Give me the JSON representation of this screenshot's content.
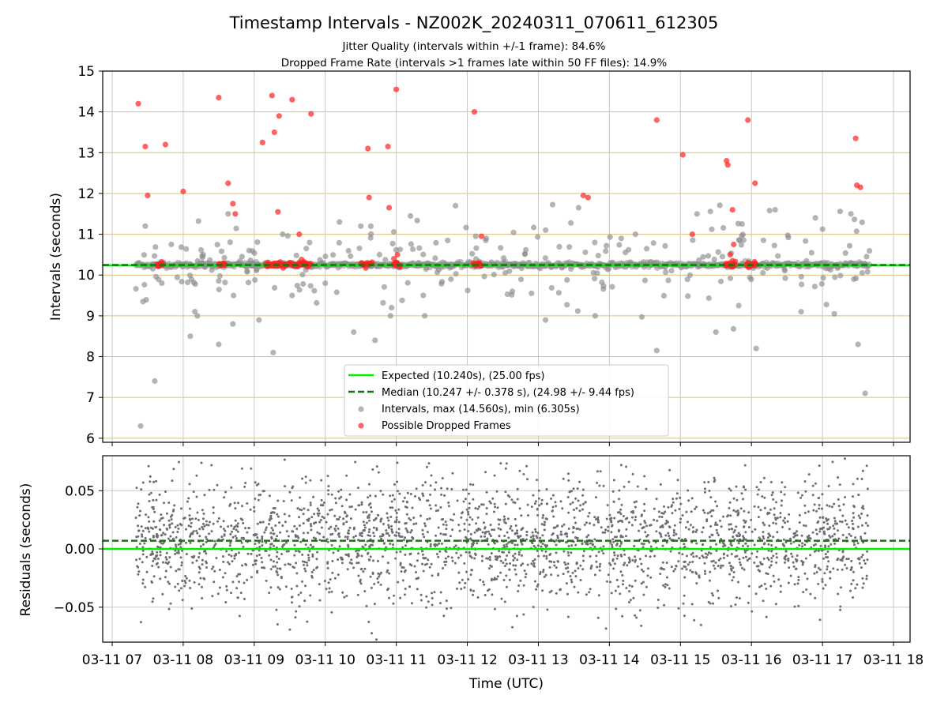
{
  "title": "Timestamp Intervals - NZ002K_20240311_070611_612305",
  "subtitle_1": "Jitter Quality (intervals within +/-1 frame): 84.6%",
  "subtitle_2": "Dropped Frame Rate (intervals >1 frames late within 50 FF files): 14.9%",
  "colors": {
    "expected": "#00ee00",
    "median": "#0a7a0a",
    "intervals": "#8c8c8c",
    "dropped": "#ff2020",
    "residuals": "#6e6e6e",
    "hgrid_top": "#d8bf7a",
    "vgrid": "#c8c8c8"
  },
  "chart_data": [
    {
      "type": "scatter",
      "xlabel": "",
      "ylabel": "Intervals (seconds)",
      "xlim": [
        "2024-03-11 06:52",
        "2024-03-11 18:14"
      ],
      "ylim": [
        5.9,
        15
      ],
      "yticks": [
        6,
        7,
        8,
        9,
        10,
        11,
        12,
        13,
        14,
        15
      ],
      "grid": true,
      "legend_position": "lower-center",
      "expected_value": 10.24,
      "median_value": 10.247,
      "legend": {
        "expected": "Expected (10.240s), (25.00 fps)",
        "median": "Median (10.247 +/- 0.378 s), (24.98 +/- 9.44 fps)",
        "intervals": "Intervals, max (14.560s), min (6.305s)",
        "dropped": "Possible Dropped Frames"
      },
      "series": [
        {
          "name": "Intervals, max (14.560s), min (6.305s)",
          "x": [
            "2024-03-11 07:24",
            "2024-03-11 07:26",
            "2024-03-11 07:28",
            "2024-03-11 07:36",
            "2024-03-11 07:42",
            "2024-03-11 07:50",
            "2024-03-11 08:06",
            "2024-03-11 08:12",
            "2024-03-11 08:18",
            "2024-03-11 08:30",
            "2024-03-11 08:38",
            "2024-03-11 08:42",
            "2024-03-11 08:54",
            "2024-03-11 09:04",
            "2024-03-11 09:16",
            "2024-03-11 09:24",
            "2024-03-11 09:32",
            "2024-03-11 09:44",
            "2024-03-11 10:00",
            "2024-03-11 10:12",
            "2024-03-11 10:24",
            "2024-03-11 10:30",
            "2024-03-11 10:42",
            "2024-03-11 10:56",
            "2024-03-11 11:12",
            "2024-03-11 11:24",
            "2024-03-11 11:50",
            "2024-03-11 12:16",
            "2024-03-11 12:38",
            "2024-03-11 13:06",
            "2024-03-11 13:34",
            "2024-03-11 13:48",
            "2024-03-11 14:10",
            "2024-03-11 14:22",
            "2024-03-11 14:40",
            "2024-03-11 15:14",
            "2024-03-11 15:30",
            "2024-03-11 15:50",
            "2024-03-11 16:04",
            "2024-03-11 16:20",
            "2024-03-11 16:42",
            "2024-03-11 16:54",
            "2024-03-11 17:10",
            "2024-03-11 17:24",
            "2024-03-11 17:30",
            "2024-03-11 17:36"
          ],
          "y": [
            6.3,
            9.35,
            11.2,
            7.4,
            9.8,
            10.75,
            8.5,
            9.0,
            10.2,
            8.3,
            11.5,
            8.8,
            10.1,
            8.9,
            8.1,
            11.0,
            9.5,
            10.65,
            9.8,
            11.3,
            8.6,
            11.2,
            8.4,
            9.2,
            11.45,
            9.0,
            11.7,
            10.9,
            9.6,
            8.9,
            11.65,
            9.0,
            10.9,
            11.0,
            8.15,
            11.5,
            8.6,
            10.85,
            8.2,
            11.6,
            9.1,
            11.4,
            9.05,
            11.5,
            8.3,
            7.1
          ]
        },
        {
          "name": "Possible Dropped Frames",
          "x": [
            "2024-03-11 07:22",
            "2024-03-11 07:28",
            "2024-03-11 07:30",
            "2024-03-11 07:45",
            "2024-03-11 08:00",
            "2024-03-11 08:30",
            "2024-03-11 08:38",
            "2024-03-11 08:42",
            "2024-03-11 08:44",
            "2024-03-11 09:07",
            "2024-03-11 09:15",
            "2024-03-11 09:17",
            "2024-03-11 09:20",
            "2024-03-11 09:21",
            "2024-03-11 09:32",
            "2024-03-11 09:38",
            "2024-03-11 09:48",
            "2024-03-11 10:36",
            "2024-03-11 10:37",
            "2024-03-11 10:53",
            "2024-03-11 10:54",
            "2024-03-11 11:00",
            "2024-03-11 12:06",
            "2024-03-11 12:12",
            "2024-03-11 13:38",
            "2024-03-11 13:42",
            "2024-03-11 14:40",
            "2024-03-11 15:02",
            "2024-03-11 15:10",
            "2024-03-11 15:39",
            "2024-03-11 15:40",
            "2024-03-11 15:44",
            "2024-03-11 15:45",
            "2024-03-11 15:57",
            "2024-03-11 16:03",
            "2024-03-11 17:28",
            "2024-03-11 17:29",
            "2024-03-11 17:32"
          ],
          "y": [
            14.2,
            13.15,
            11.95,
            13.2,
            12.05,
            14.35,
            12.25,
            11.75,
            11.5,
            13.25,
            14.4,
            13.5,
            11.55,
            13.9,
            14.3,
            11.0,
            13.95,
            13.1,
            11.9,
            13.15,
            11.65,
            14.55,
            14.0,
            10.95,
            11.95,
            11.9,
            13.8,
            12.95,
            11.0,
            12.8,
            12.7,
            11.6,
            10.75,
            13.8,
            12.25,
            13.35,
            12.2,
            12.15
          ]
        }
      ]
    },
    {
      "type": "scatter",
      "xlabel": "Time (UTC)",
      "ylabel": "Residuals (seconds)",
      "xlim": [
        "2024-03-11 06:52",
        "2024-03-11 18:14"
      ],
      "ylim": [
        -0.08,
        0.08
      ],
      "yticks": [
        -0.05,
        0.0,
        0.05
      ],
      "ytick_labels": [
        "−0.05",
        "0.00",
        "0.05"
      ],
      "xtick_labels": [
        "03-11 07",
        "03-11 08",
        "03-11 09",
        "03-11 10",
        "03-11 11",
        "03-11 12",
        "03-11 13",
        "03-11 14",
        "03-11 15",
        "03-11 16",
        "03-11 17",
        "03-11 18"
      ],
      "grid": true,
      "expected_value": 0.0,
      "median_value": 0.007,
      "residual_std": 0.027
    }
  ]
}
